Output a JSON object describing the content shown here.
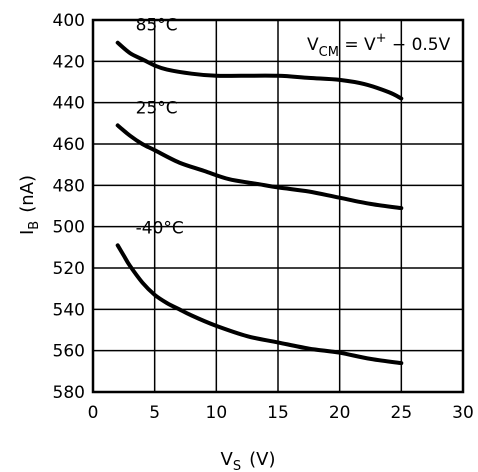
{
  "chart_data": {
    "type": "line",
    "title": "",
    "xlabel": "V",
    "xlabel_sub": "S",
    "xlabel_unit": "(V)",
    "ylabel": "I",
    "ylabel_sub": "B",
    "ylabel_unit": "(nA)",
    "xlim": [
      0,
      30
    ],
    "ylim": [
      400,
      580
    ],
    "y_inverted": true,
    "grid": true,
    "x_ticks": [
      "0",
      "5",
      "10",
      "15",
      "20",
      "25",
      "30"
    ],
    "y_ticks": [
      "400",
      "420",
      "440",
      "460",
      "480",
      "500",
      "520",
      "540",
      "560",
      "580"
    ],
    "annotation": {
      "v": "V",
      "cm": "CM",
      "eq": " = V",
      "plus": "+",
      "rest": " − 0.5V"
    },
    "series": [
      {
        "name": "85°C",
        "x": [
          2,
          3,
          4,
          5,
          6,
          8,
          10,
          12,
          15,
          17.5,
          20,
          22,
          24,
          25
        ],
        "y": [
          411,
          416,
          419,
          422,
          424,
          426,
          427,
          427,
          427,
          428,
          429,
          431,
          435,
          438
        ]
      },
      {
        "name": "25°C",
        "x": [
          2,
          3,
          4,
          5,
          7,
          9,
          11,
          13,
          15,
          17.5,
          20,
          22.5,
          25
        ],
        "y": [
          451,
          456,
          460,
          463,
          469,
          473,
          477,
          479,
          481,
          483,
          486,
          489,
          491
        ]
      },
      {
        "name": "-40°C",
        "x": [
          2,
          2.5,
          3,
          4,
          5,
          6,
          7,
          8,
          10,
          12.5,
          15,
          17.5,
          20,
          22.5,
          25
        ],
        "y": [
          509,
          514,
          519,
          527,
          533,
          537,
          540,
          543,
          548,
          553,
          556,
          559,
          561,
          564,
          566
        ]
      }
    ]
  }
}
